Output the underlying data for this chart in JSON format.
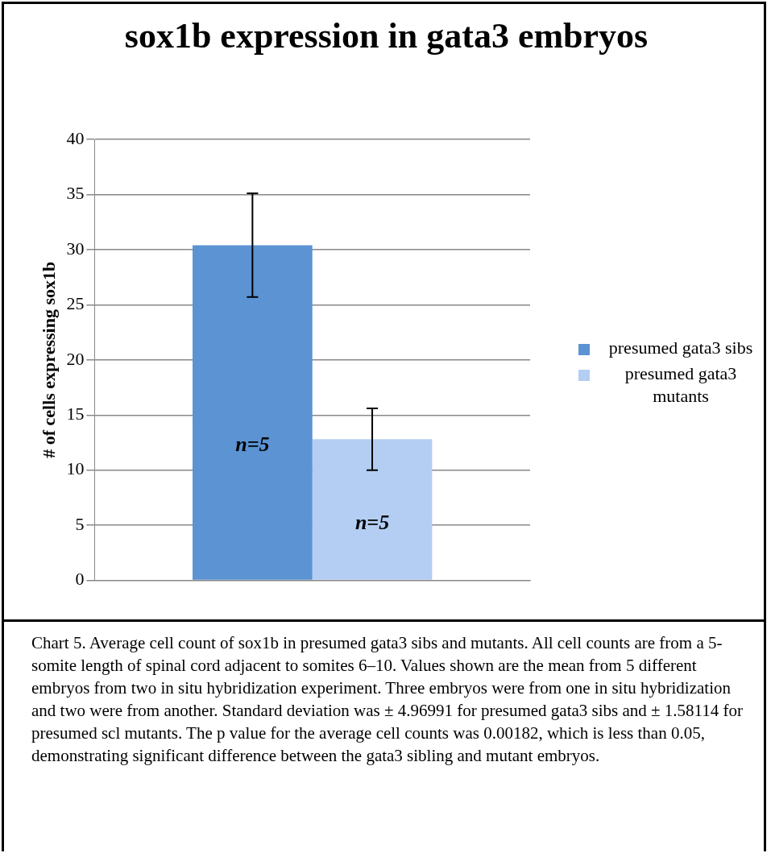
{
  "chart_data": {
    "type": "bar",
    "title": "sox1b expression in gata3 embryos",
    "ylabel": "# of cells expressing sox1b",
    "categories": [
      null
    ],
    "series": [
      {
        "name": "presumed gata3 sibs",
        "color": "#5b93d3",
        "values": [
          30.4
        ],
        "errors": [
          4.7
        ]
      },
      {
        "name": "presumed gata3 mutants",
        "color": "#b4cdf3",
        "values": [
          12.8
        ],
        "errors": [
          2.8
        ]
      }
    ],
    "ylim": [
      0,
      40
    ],
    "yticks": [
      0,
      5,
      10,
      15,
      20,
      25,
      30,
      35,
      40
    ],
    "grid": "y",
    "legend": "right",
    "annotations": [
      "n=5",
      "n=5",
      "Chart 5. Average cell count of sox1b in presumed gata3 sibs and mutants.  All cell counts are from a 5-somite length of spinal cord adjacent to somites 6–10. Values shown are the mean from 5 different embryos from two in situ hybridization experiment. Three embryos were from one in situ hybridization and two were from another. Standard deviation was ± 4.96991 for presumed gata3 sibs and ± 1.58114 for presumed scl mutants. The p value for the average cell counts was 0.00182, which is less than 0.05, demonstrating significant difference between the gata3 sibling and mutant embryos."
    ]
  }
}
